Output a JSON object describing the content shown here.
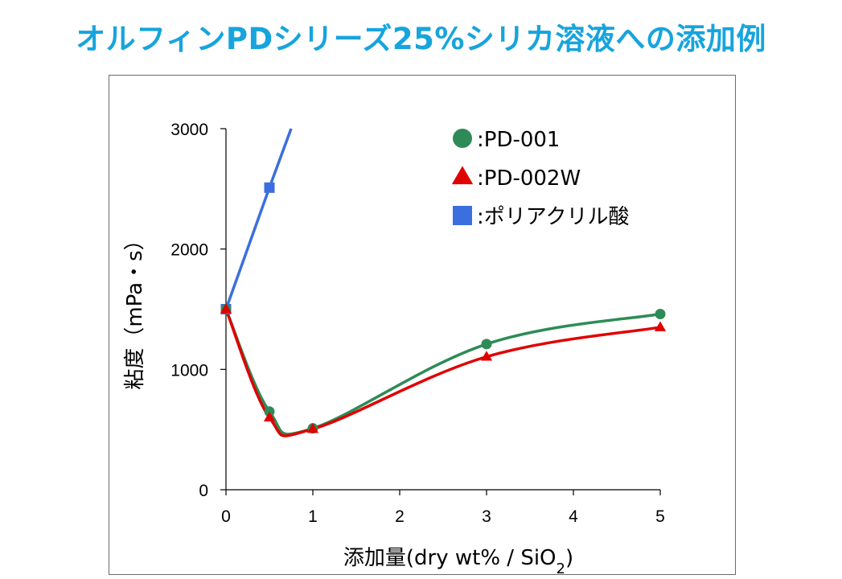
{
  "title": "オルフィンPDシリーズ25%シリカ溶液への添加例",
  "colors": {
    "title": "#17a4dd",
    "pd001": "#2e8b57",
    "pd002w": "#e00000",
    "polyacrylic": "#3b6fe0"
  },
  "chart_data": {
    "type": "line",
    "xlabel_main": "添加量(dry wt%  / SiO",
    "xlabel_sub": "2",
    "xlabel_end": ")",
    "ylabel": "粘度（mPa・s）",
    "xlim": [
      0,
      5
    ],
    "ylim": [
      0,
      3000
    ],
    "x_ticks": [
      "0",
      "1",
      "2",
      "3",
      "4",
      "5"
    ],
    "y_ticks": [
      "0",
      "1000",
      "2000",
      "3000"
    ],
    "legend_placement": "top-right",
    "series": [
      {
        "name": ":PD-001",
        "marker": "circle",
        "color": "#2e8b57",
        "x": [
          0,
          0.5,
          1,
          3,
          5
        ],
        "y": [
          1500,
          650,
          510,
          1210,
          1460
        ]
      },
      {
        "name": ":PD-002W",
        "marker": "triangle",
        "color": "#e00000",
        "x": [
          0,
          0.5,
          1,
          3,
          5
        ],
        "y": [
          1500,
          600,
          505,
          1105,
          1350
        ]
      },
      {
        "name": ":ポリアクリル酸",
        "marker": "square",
        "color": "#3b6fe0",
        "x": [
          0,
          0.5,
          0.75
        ],
        "y": [
          1500,
          2510,
          3000
        ],
        "marker_count": 2
      }
    ]
  }
}
